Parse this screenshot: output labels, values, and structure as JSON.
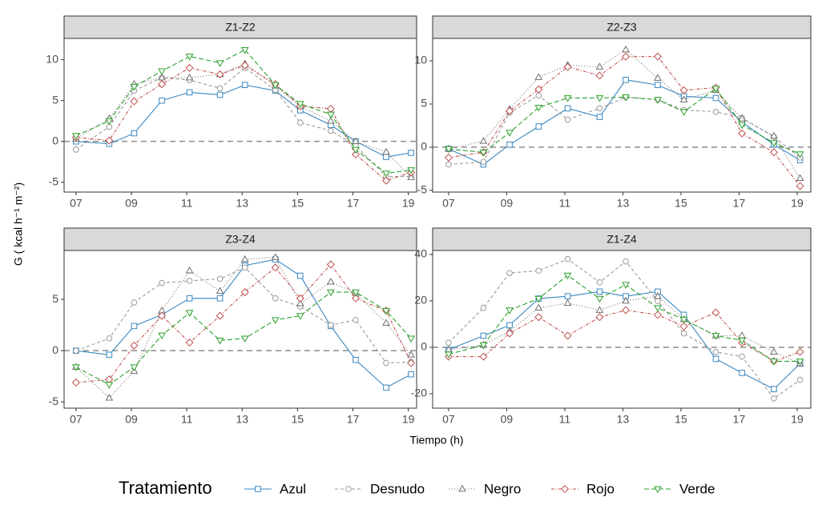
{
  "x_label": "Tiempo (h)",
  "y_label": "G ( kcal h⁻¹ m⁻²)",
  "legend": {
    "title": "Tratamiento",
    "series": [
      {
        "name": "Azul",
        "color": "#3a87c0",
        "marker": "square",
        "dash": "none"
      },
      {
        "name": "Desnudo",
        "color": "#9a9a9a",
        "marker": "circle",
        "dash": "4,3"
      },
      {
        "name": "Negro",
        "color": "#6e6e6e",
        "marker": "triangle-up",
        "dash": "1,2.5"
      },
      {
        "name": "Rojo",
        "color": "#c0504d",
        "marker": "diamond",
        "dash": "4,2,1,2"
      },
      {
        "name": "Verde",
        "color": "#2ca02c",
        "marker": "triangle-down",
        "dash": "6,3"
      }
    ]
  },
  "chart_data": [
    {
      "type": "line",
      "title": "Z1-Z2",
      "hline": 0,
      "x": [
        7,
        8.2,
        9.1,
        10.1,
        11.1,
        12.2,
        13.1,
        14.2,
        15.1,
        16.2,
        17.1,
        18.2,
        19.1
      ],
      "xlim": [
        6.57,
        19.3
      ],
      "xticks": [
        {
          "value": 7,
          "label": "07"
        },
        {
          "value": 9,
          "label": "09"
        },
        11,
        13,
        15,
        17,
        19
      ],
      "ylim": [
        -6.2,
        12.6
      ],
      "yticks": [
        -5,
        0,
        5,
        10
      ],
      "series": [
        {
          "values": [
            0,
            -0.3,
            1,
            5,
            6,
            5.7,
            6.9,
            6.2,
            3.8,
            2,
            0,
            -1.9,
            -1.4
          ]
        },
        {
          "values": [
            -1,
            1.8,
            6.2,
            7.8,
            7.5,
            6.5,
            9,
            6.3,
            2.3,
            1.3,
            -0.5,
            -4.3,
            -4.3
          ]
        },
        {
          "values": [
            0.3,
            2.8,
            7,
            7.8,
            7.8,
            8.2,
            9.5,
            6.8,
            4.3,
            2.5,
            0,
            -1.3,
            -4.4
          ]
        },
        {
          "values": [
            0.5,
            0.1,
            4.9,
            7,
            9,
            8.2,
            9.3,
            7,
            4.3,
            4,
            -1.6,
            -4.8,
            -3.8
          ]
        },
        {
          "values": [
            0.7,
            2.5,
            6.7,
            8.6,
            10.4,
            9.6,
            11.2,
            6.9,
            4.6,
            3.3,
            -1,
            -3.9,
            -3.5
          ]
        }
      ]
    },
    {
      "type": "line",
      "title": "Z2-Z3",
      "hline": 0,
      "x": [
        7,
        8.2,
        9.1,
        10.1,
        11.1,
        12.2,
        13.1,
        14.2,
        15.1,
        16.2,
        17.1,
        18.2,
        19.1
      ],
      "xlim": [
        6.45,
        19.47
      ],
      "xticks": [
        {
          "value": 7,
          "label": "07"
        },
        {
          "value": 9,
          "label": "09"
        },
        11,
        13,
        15,
        17,
        19
      ],
      "ylim": [
        -5.2,
        12.6
      ],
      "yticks": [
        -5,
        0,
        5,
        10
      ],
      "series": [
        {
          "values": [
            -0.2,
            -2,
            0.3,
            2.4,
            4.5,
            3.5,
            7.8,
            7.2,
            5.9,
            5.7,
            2.9,
            0.3,
            -1.5
          ]
        },
        {
          "values": [
            -2,
            -1.7,
            4,
            6,
            3.2,
            4.5,
            5.8,
            5.5,
            4.3,
            4.1,
            3.4,
            1.2,
            -1.2
          ]
        },
        {
          "values": [
            -0.2,
            0.7,
            4.4,
            8.1,
            9.5,
            9.3,
            11.3,
            8,
            5.5,
            6.6,
            3.3,
            1.3,
            -3.6
          ]
        },
        {
          "values": [
            -1.2,
            -0.6,
            4.2,
            6.7,
            9.3,
            8.3,
            10.5,
            10.5,
            6.6,
            6.9,
            1.6,
            -0.6,
            -4.5
          ]
        },
        {
          "values": [
            -0.2,
            -0.6,
            1.7,
            4.6,
            5.7,
            5.7,
            5.8,
            5.5,
            4.1,
            6.8,
            2.6,
            0.5,
            -0.8
          ]
        }
      ]
    },
    {
      "type": "line",
      "title": "Z3-Z4",
      "hline": 0,
      "x": [
        7,
        8.2,
        9.1,
        10.1,
        11.1,
        12.2,
        13.1,
        14.2,
        15.1,
        16.2,
        17.1,
        18.2,
        19.1
      ],
      "xlim": [
        6.57,
        19.3
      ],
      "xticks": [
        {
          "value": 7,
          "label": "07"
        },
        {
          "value": 9,
          "label": "09"
        },
        11,
        13,
        15,
        17,
        19
      ],
      "ylim": [
        -5.6,
        9.76
      ],
      "yticks": [
        -5,
        0,
        5
      ],
      "series": [
        {
          "values": [
            0,
            -0.4,
            2.4,
            3.5,
            5.1,
            5.1,
            8.3,
            8.9,
            7.3,
            2.4,
            -0.9,
            -3.6,
            -2.3
          ]
        },
        {
          "values": [
            0,
            1.2,
            4.7,
            6.6,
            6.8,
            7,
            8.1,
            5.1,
            4.3,
            2.5,
            3,
            -1.2,
            -1.1
          ]
        },
        {
          "values": [
            -1.6,
            -4.6,
            -2,
            3.9,
            7.8,
            5.8,
            8.9,
            9.1,
            4.6,
            6.7,
            5.6,
            2.7,
            -0.4
          ]
        },
        {
          "values": [
            -3.1,
            -2.8,
            0.5,
            3.4,
            0.8,
            3.4,
            5.7,
            8.1,
            5.1,
            8.4,
            5.1,
            3.9,
            -1.2
          ]
        },
        {
          "values": [
            -1.6,
            -3.3,
            -1.6,
            1.5,
            3.7,
            1,
            1.2,
            3,
            3.4,
            5.7,
            5.7,
            3.9,
            1.2
          ]
        }
      ]
    },
    {
      "type": "line",
      "title": "Z1-Z4",
      "hline": 0,
      "x": [
        7,
        8.2,
        9.1,
        10.1,
        11.1,
        12.2,
        13.1,
        14.2,
        15.1,
        16.2,
        17.1,
        18.2,
        19.1
      ],
      "xlim": [
        6.45,
        19.47
      ],
      "xticks": [
        {
          "value": 7,
          "label": "07"
        },
        {
          "value": 9,
          "label": "09"
        },
        11,
        13,
        15,
        17,
        19
      ],
      "ylim": [
        -26.2,
        41.7
      ],
      "yticks": [
        -20,
        0,
        20,
        40
      ],
      "series": [
        {
          "values": [
            -1,
            5,
            9.5,
            21,
            22,
            24,
            22,
            24,
            14,
            -5,
            -11,
            -18,
            -7
          ]
        },
        {
          "values": [
            2,
            17,
            32,
            33,
            38,
            28,
            37,
            20,
            6,
            -2,
            -4,
            -22,
            -14
          ]
        },
        {
          "values": [
            -1,
            1,
            7,
            17,
            19,
            16,
            20,
            22,
            12,
            5,
            5,
            -2,
            -7
          ]
        },
        {
          "values": [
            -4,
            -4,
            6,
            13,
            5,
            13,
            16,
            14,
            9,
            15,
            2,
            -6,
            -2
          ]
        },
        {
          "values": [
            -3,
            1,
            16,
            21,
            31,
            21,
            27,
            17,
            12,
            5,
            3,
            -6,
            -6
          ]
        }
      ]
    }
  ]
}
